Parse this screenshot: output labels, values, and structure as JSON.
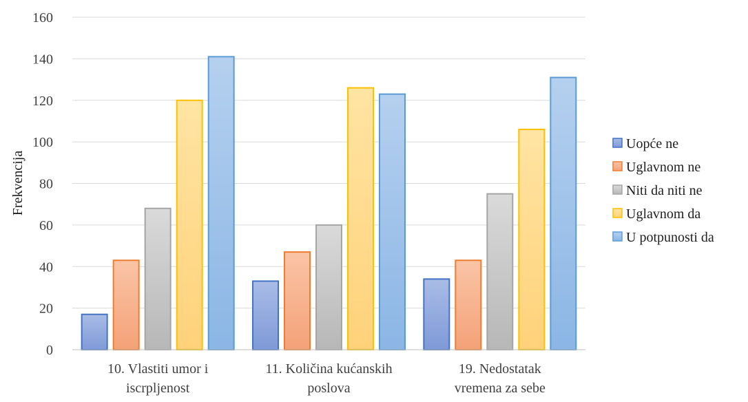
{
  "chart_data": {
    "type": "bar",
    "title": "",
    "xlabel": "",
    "ylabel": "Frekvencija",
    "ylim": [
      0,
      160
    ],
    "ytick_step": 20,
    "grid": true,
    "legend_position": "right",
    "categories": [
      [
        "10. Vlastiti umor i",
        "iscrpljenost"
      ],
      [
        "11. Količina kućanskih",
        "poslova"
      ],
      [
        "19. Nedostatak",
        "vremena za sebe"
      ]
    ],
    "series": [
      {
        "name": "Uopće ne",
        "values": [
          17,
          33,
          34
        ],
        "color": "#4472C4",
        "fill_light": "#A9BCE6",
        "fill_dark": "#7F9AD8"
      },
      {
        "name": "Uglavnom ne",
        "values": [
          43,
          47,
          43
        ],
        "color": "#ED7D31",
        "fill_light": "#FAC4A6",
        "fill_dark": "#F4A278"
      },
      {
        "name": "Niti da niti ne",
        "values": [
          68,
          60,
          75
        ],
        "color": "#A5A5A5",
        "fill_light": "#DADADA",
        "fill_dark": "#B7B7B7"
      },
      {
        "name": "Uglavnom da",
        "values": [
          120,
          126,
          106
        ],
        "color": "#FFC000",
        "fill_light": "#FFE4A3",
        "fill_dark": "#FFD27A"
      },
      {
        "name": "U potpunosti da",
        "values": [
          141,
          123,
          131
        ],
        "color": "#5B9BD5",
        "fill_light": "#B5D0EF",
        "fill_dark": "#8BB6E5"
      }
    ]
  }
}
